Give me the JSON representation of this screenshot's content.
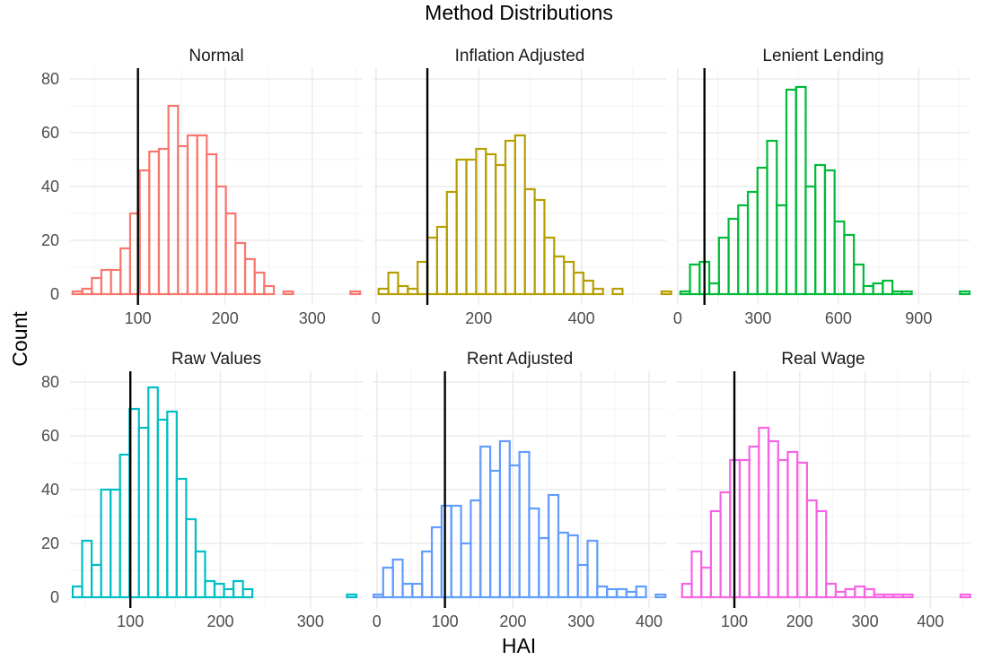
{
  "chart_data": {
    "type": "histogram",
    "title": "Method Distributions",
    "xlabel": "HAI",
    "ylabel": "Count",
    "ylim": [
      0,
      80
    ],
    "yticks": [
      0,
      20,
      40,
      60,
      80
    ],
    "reference_line_x": 100,
    "grid": true,
    "legend": "none",
    "panels": [
      {
        "name": "Normal",
        "color": "#F8766D",
        "xlim": [
          22,
          358
        ],
        "xticks": [
          100,
          200,
          300
        ],
        "bin_start": 25,
        "bin_width": 11,
        "counts": [
          1,
          2,
          6,
          9,
          9,
          17,
          30,
          46,
          53,
          54,
          70,
          55,
          59,
          59,
          52,
          40,
          30,
          19,
          13,
          8,
          3,
          0,
          1,
          0,
          0,
          0,
          0,
          0,
          0,
          1
        ]
      },
      {
        "name": "Inflation Adjusted",
        "color": "#B79F00",
        "xlim": [
          -5,
          565
        ],
        "xticks": [
          0,
          200,
          400
        ],
        "bin_start": 5,
        "bin_width": 19,
        "counts": [
          2,
          8,
          3,
          2,
          12,
          21,
          25,
          38,
          50,
          50,
          54,
          52,
          48,
          57,
          59,
          39,
          35,
          21,
          14,
          12,
          8,
          5,
          2,
          0,
          2,
          0,
          0,
          0,
          0,
          1
        ]
      },
      {
        "name": "Lenient Lending",
        "color": "#00BA38",
        "xlim": [
          -3,
          1090
        ],
        "xticks": [
          0,
          300,
          600,
          900
        ],
        "bin_start": 10,
        "bin_width": 36,
        "counts": [
          1,
          11,
          12,
          4,
          21,
          28,
          33,
          38,
          47,
          57,
          33,
          76,
          77,
          40,
          48,
          46,
          27,
          22,
          11,
          3,
          4,
          5,
          1,
          1,
          0,
          0,
          0,
          0,
          0,
          1
        ]
      },
      {
        "name": "Raw Values",
        "color": "#00BFC4",
        "xlim": [
          33,
          358
        ],
        "xticks": [
          100,
          200,
          300
        ],
        "bin_start": 36,
        "bin_width": 10.5,
        "counts": [
          4,
          21,
          12,
          40,
          40,
          53,
          70,
          63,
          78,
          66,
          69,
          44,
          29,
          17,
          6,
          5,
          3,
          6,
          3,
          0,
          0,
          0,
          0,
          0,
          0,
          0,
          0,
          0,
          0,
          1
        ]
      },
      {
        "name": "Rent Adjusted",
        "color": "#619CFF",
        "xlim": [
          -5,
          425
        ],
        "xticks": [
          0,
          100,
          200,
          300,
          400
        ],
        "bin_start": -5,
        "bin_width": 14.3,
        "counts": [
          1,
          11,
          14,
          5,
          5,
          17,
          26,
          34,
          34,
          20,
          36,
          56,
          47,
          58,
          49,
          54,
          33,
          22,
          38,
          24,
          23,
          12,
          21,
          4,
          3,
          3,
          2,
          4,
          0,
          1
        ]
      },
      {
        "name": "Real Wage",
        "color": "#F564E3",
        "xlim": [
          12,
          460
        ],
        "xticks": [
          100,
          200,
          300,
          400
        ],
        "bin_start": 20,
        "bin_width": 14.7,
        "counts": [
          5,
          17,
          11,
          32,
          39,
          51,
          51,
          56,
          63,
          58,
          51,
          54,
          50,
          36,
          32,
          5,
          2,
          3,
          4,
          3,
          1,
          1,
          1,
          1,
          0,
          0,
          0,
          0,
          0,
          1
        ]
      }
    ]
  }
}
